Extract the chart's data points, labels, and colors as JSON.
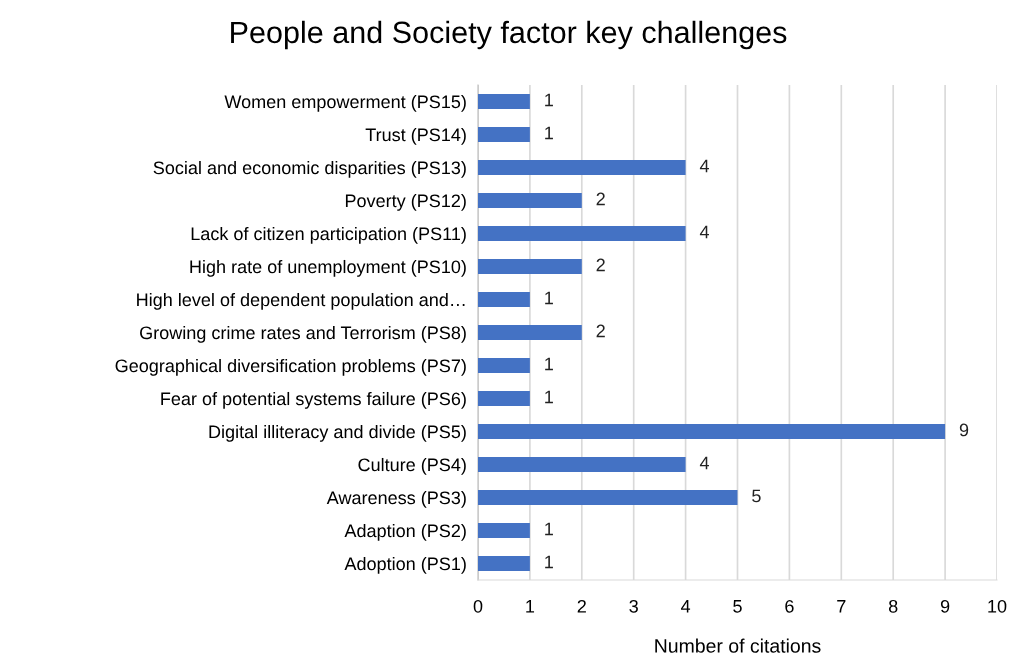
{
  "chart_data": {
    "type": "bar",
    "orientation": "horizontal",
    "title": "People and Society factor key challenges",
    "xlabel": "Number of citations",
    "categories": [
      "Women empowerment (PS15)",
      "Trust (PS14)",
      "Social and economic disparities (PS13)",
      "Poverty (PS12)",
      "Lack of citizen participation (PS11)",
      "High rate of unemployment (PS10)",
      "High level of dependent population and…",
      "Growing crime rates and Terrorism (PS8)",
      "Geographical diversification problems (PS7)",
      "Fear of potential systems failure (PS6)",
      "Digital illiteracy and divide (PS5)",
      "Culture (PS4)",
      "Awareness (PS3)",
      "Adaption (PS2)",
      "Adoption (PS1)"
    ],
    "values": [
      1,
      1,
      4,
      2,
      4,
      2,
      1,
      2,
      1,
      1,
      9,
      4,
      5,
      1,
      1
    ],
    "color": "#4472c4",
    "xlim": [
      0,
      10
    ],
    "xticks": [
      0,
      1,
      2,
      3,
      4,
      5,
      6,
      7,
      8,
      9,
      10
    ],
    "grid": "x",
    "data_labels": true,
    "legend": false
  }
}
